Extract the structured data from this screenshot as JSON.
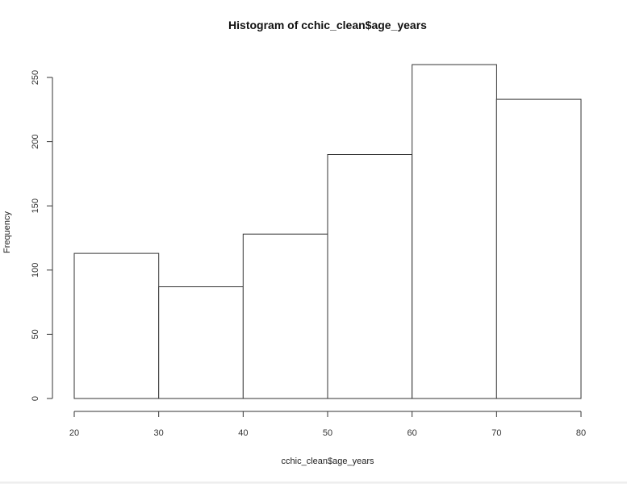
{
  "chart_data": {
    "type": "bar",
    "title": "Histogram of cchic_clean$age_years",
    "xlabel": "cchic_clean$age_years",
    "ylabel": "Frequency",
    "bins": [
      {
        "start": 20,
        "end": 30,
        "value": 113
      },
      {
        "start": 30,
        "end": 40,
        "value": 87
      },
      {
        "start": 40,
        "end": 50,
        "value": 128
      },
      {
        "start": 50,
        "end": 60,
        "value": 190
      },
      {
        "start": 60,
        "end": 70,
        "value": 260
      },
      {
        "start": 70,
        "end": 80,
        "value": 233
      }
    ],
    "xlim": [
      20,
      80
    ],
    "ylim": [
      0,
      260
    ],
    "x_ticks": [
      20,
      30,
      40,
      50,
      60,
      70,
      80
    ],
    "y_ticks": [
      0,
      50,
      100,
      150,
      200,
      250
    ],
    "grid": false,
    "legend": "none",
    "colors": {
      "bar_fill": "#ffffff",
      "bar_stroke": "#333333"
    }
  }
}
